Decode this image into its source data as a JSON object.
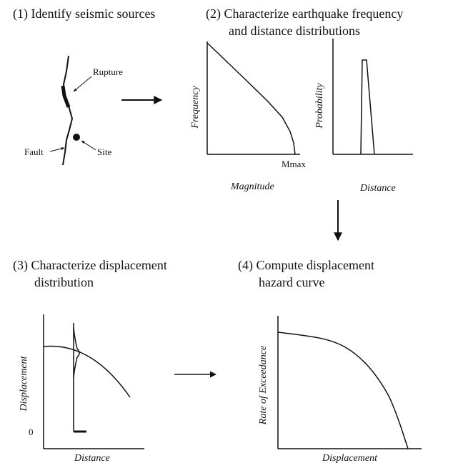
{
  "steps": {
    "step1": "(1) Identify seismic sources",
    "step2_line1": "(2) Characterize earthquake frequency",
    "step2_line2": "and distance distributions",
    "step3_line1": "(3) Characterize displacement",
    "step3_line2": "distribution",
    "step4_line1": "(4) Compute displacement",
    "step4_line2": "hazard curve"
  },
  "sketch": {
    "rupture": "Rupture",
    "fault": "Fault",
    "site": "Site"
  },
  "frequency_plot": {
    "ylabel": "Frequency",
    "xlabel": "Magnitude",
    "tick": "Mmax"
  },
  "probability_plot": {
    "ylabel": "Probability",
    "xlabel": "Distance"
  },
  "displacement_plot": {
    "ylabel": "Displacement",
    "xlabel": "Distance",
    "zero": "0"
  },
  "hazard_plot": {
    "ylabel": "Rate of Exceedance",
    "xlabel": "Displacement"
  }
}
